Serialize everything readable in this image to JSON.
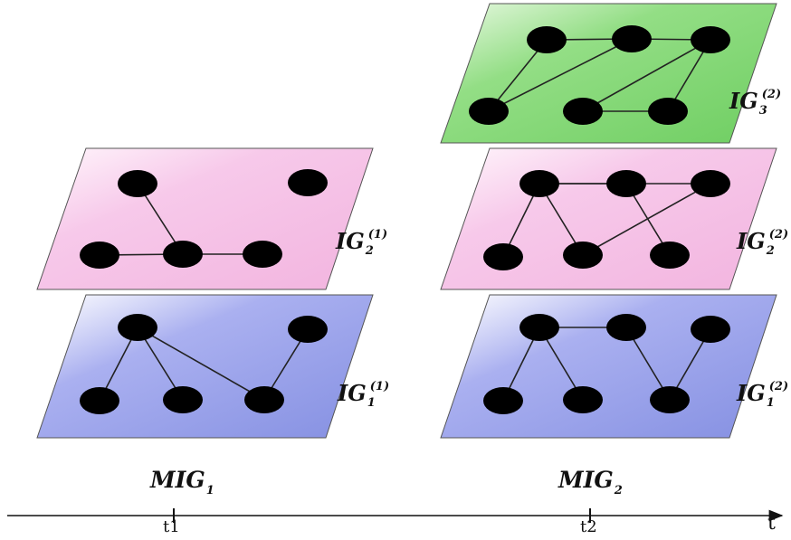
{
  "colors": {
    "layer1": "#8f98e8",
    "layer2": "#f7bfe6",
    "layer3": "#86d97a",
    "node": "#000000",
    "edge": "#222222"
  },
  "groups": [
    {
      "id": "MIG1",
      "label": "MIG",
      "label_sub": "1",
      "tick": "t1",
      "layers": [
        {
          "id": "IG1-1",
          "label": "IG",
          "sub": "1",
          "sup": "(1)",
          "color_key": "layer1",
          "nodes": [
            "a",
            "b",
            "c",
            "d",
            "e"
          ],
          "edges": [
            [
              "a",
              "b"
            ],
            [
              "a",
              "c"
            ],
            [
              "a",
              "d"
            ],
            [
              "d",
              "e"
            ]
          ]
        },
        {
          "id": "IG2-1",
          "label": "IG",
          "sub": "2",
          "sup": "(1)",
          "color_key": "layer2",
          "nodes": [
            "a",
            "b",
            "c",
            "d",
            "e"
          ],
          "edges": [
            [
              "a",
              "c"
            ],
            [
              "b",
              "c"
            ],
            [
              "c",
              "d"
            ]
          ]
        }
      ]
    },
    {
      "id": "MIG2",
      "label": "MIG",
      "label_sub": "2",
      "tick": "t2",
      "layers": [
        {
          "id": "IG1-2",
          "label": "IG",
          "sub": "1",
          "sup": "(2)",
          "color_key": "layer1",
          "nodes": [
            "a",
            "b",
            "c",
            "d",
            "e",
            "f"
          ],
          "edges": [
            [
              "a",
              "b"
            ],
            [
              "a",
              "c"
            ],
            [
              "a",
              "f"
            ],
            [
              "f",
              "d"
            ],
            [
              "d",
              "e"
            ]
          ]
        },
        {
          "id": "IG2-2",
          "label": "IG",
          "sub": "2",
          "sup": "(2)",
          "color_key": "layer2",
          "nodes": [
            "a",
            "b",
            "c",
            "d",
            "e",
            "f"
          ],
          "edges": [
            [
              "a",
              "b"
            ],
            [
              "a",
              "c"
            ],
            [
              "a",
              "e"
            ],
            [
              "a",
              "f"
            ],
            [
              "c",
              "e"
            ],
            [
              "f",
              "d"
            ]
          ]
        },
        {
          "id": "IG3-2",
          "label": "IG",
          "sub": "3",
          "sup": "(2)",
          "color_key": "layer3",
          "nodes": [
            "a",
            "b",
            "c",
            "d",
            "e",
            "f"
          ],
          "edges": [
            [
              "a",
              "c"
            ],
            [
              "a",
              "b"
            ],
            [
              "b",
              "c"
            ],
            [
              "f",
              "b"
            ],
            [
              "f",
              "e"
            ],
            [
              "f",
              "d"
            ],
            [
              "d",
              "e"
            ]
          ]
        }
      ]
    }
  ],
  "axis": {
    "label": "t"
  }
}
